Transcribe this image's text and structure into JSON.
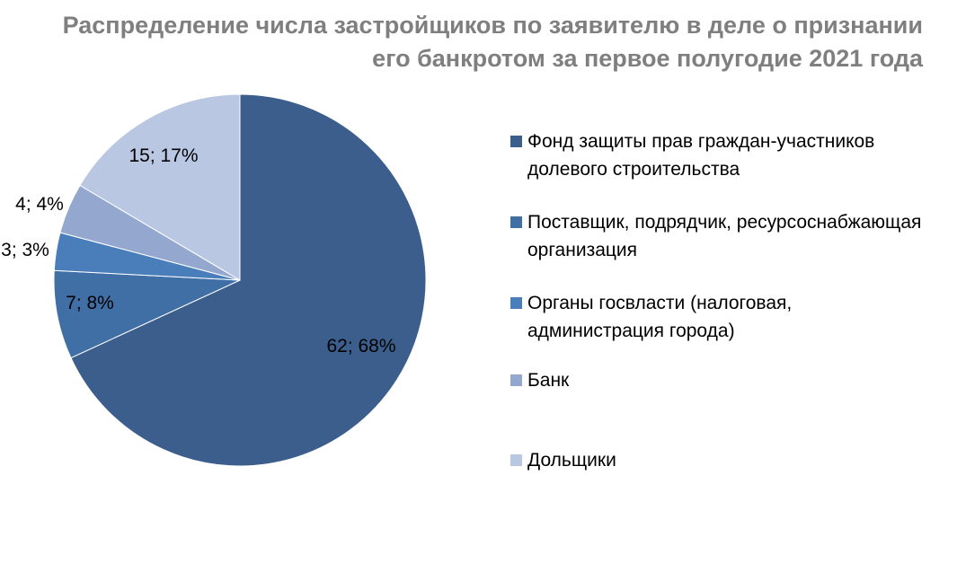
{
  "chart_data": {
    "type": "pie",
    "title_lines": [
      "Распределение числа застройщиков по заявителю в деле о признании",
      "его банкротом за первое полугодие  2021 года"
    ],
    "slices": [
      {
        "name": "Фонд защиты прав граждан-участников долевого строительства",
        "legend_lines": [
          "Фонд защиты прав граждан-участников",
          "долевого строительства"
        ],
        "value": 62,
        "percent": 68,
        "label": "62; 68%",
        "color": "#3B5E8C"
      },
      {
        "name": "Поставщик, подрядчик, ресурсоснабжающая организация",
        "legend_lines": [
          "Поставщик, подрядчик, ресурсоснабжающая",
          "организация"
        ],
        "value": 7,
        "percent": 8,
        "label": "7; 8%",
        "color": "#406FA6"
      },
      {
        "name": "Органы госвласти (налоговая, администрация города)",
        "legend_lines": [
          "Органы госвласти (налоговая,",
          "администрация города)"
        ],
        "value": 3,
        "percent": 3,
        "label": "3; 3%",
        "color": "#4A7EBB"
      },
      {
        "name": "Банк",
        "legend_lines": [
          "Банк"
        ],
        "value": 4,
        "percent": 4,
        "label": "4; 4%",
        "color": "#94A8CF"
      },
      {
        "name": "Дольщики",
        "legend_lines": [
          "Дольщики"
        ],
        "value": 15,
        "percent": 17,
        "label": "15; 17%",
        "color": "#B9C7E2"
      }
    ],
    "start_angle": "12 o'clock",
    "direction": "clockwise",
    "legend_position": "right"
  }
}
